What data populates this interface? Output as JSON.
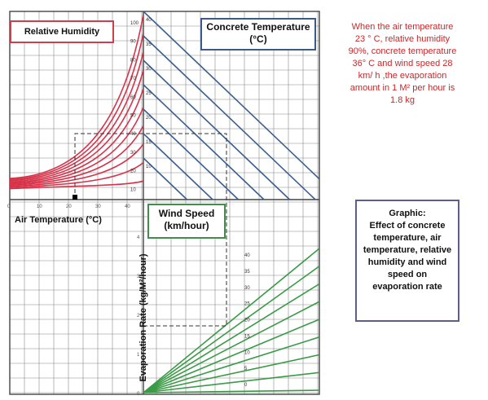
{
  "labels": {
    "relative_humidity": "Relative Humidity",
    "concrete_temperature": "Concrete Temperature (°C)",
    "wind_speed": "Wind Speed (km/hour)",
    "air_temperature": "Air Temperature (°C)",
    "evaporation_rate": "Evaporation Rate (kg/M²/hour)"
  },
  "note": "When the air temperature 23 ° C, relative humidity 90%, concrete temperature 36° C and wind speed 28 km/ h ,the evaporation amount in 1 M² per hour is 1.8 kg",
  "caption": {
    "title": "Graphic:",
    "body": "Effect of concrete temperature, air temperature, relative humidity and wind speed on evaporation rate"
  },
  "colors": {
    "humidity": "#d6334a",
    "concrete": "#3a5f8f",
    "wind": "#3a9a46",
    "grid": "#888888",
    "dash": "#333333"
  },
  "chart_data": [
    {
      "type": "line",
      "panel": "relative-humidity",
      "x_ticks": [
        "0",
        "10",
        "20",
        "30",
        "40"
      ],
      "series_labels": [
        "100",
        "90",
        "80",
        "70",
        "60",
        "50",
        "40",
        "30",
        "20",
        "10"
      ]
    },
    {
      "type": "line",
      "panel": "concrete-temperature",
      "series_labels": [
        "40",
        "35",
        "30",
        "25",
        "20",
        "15",
        "10"
      ]
    },
    {
      "type": "line",
      "panel": "wind-speed",
      "y_ticks": [
        "0",
        "1",
        "2",
        "3",
        "4"
      ],
      "series_labels": [
        "40",
        "35",
        "30",
        "25",
        "20",
        "15",
        "10",
        "5",
        "0"
      ]
    },
    {
      "type": "example",
      "air_temperature": 23,
      "relative_humidity": 90,
      "concrete_temperature": 36,
      "wind_speed": 28,
      "evaporation_rate": 1.8
    }
  ]
}
